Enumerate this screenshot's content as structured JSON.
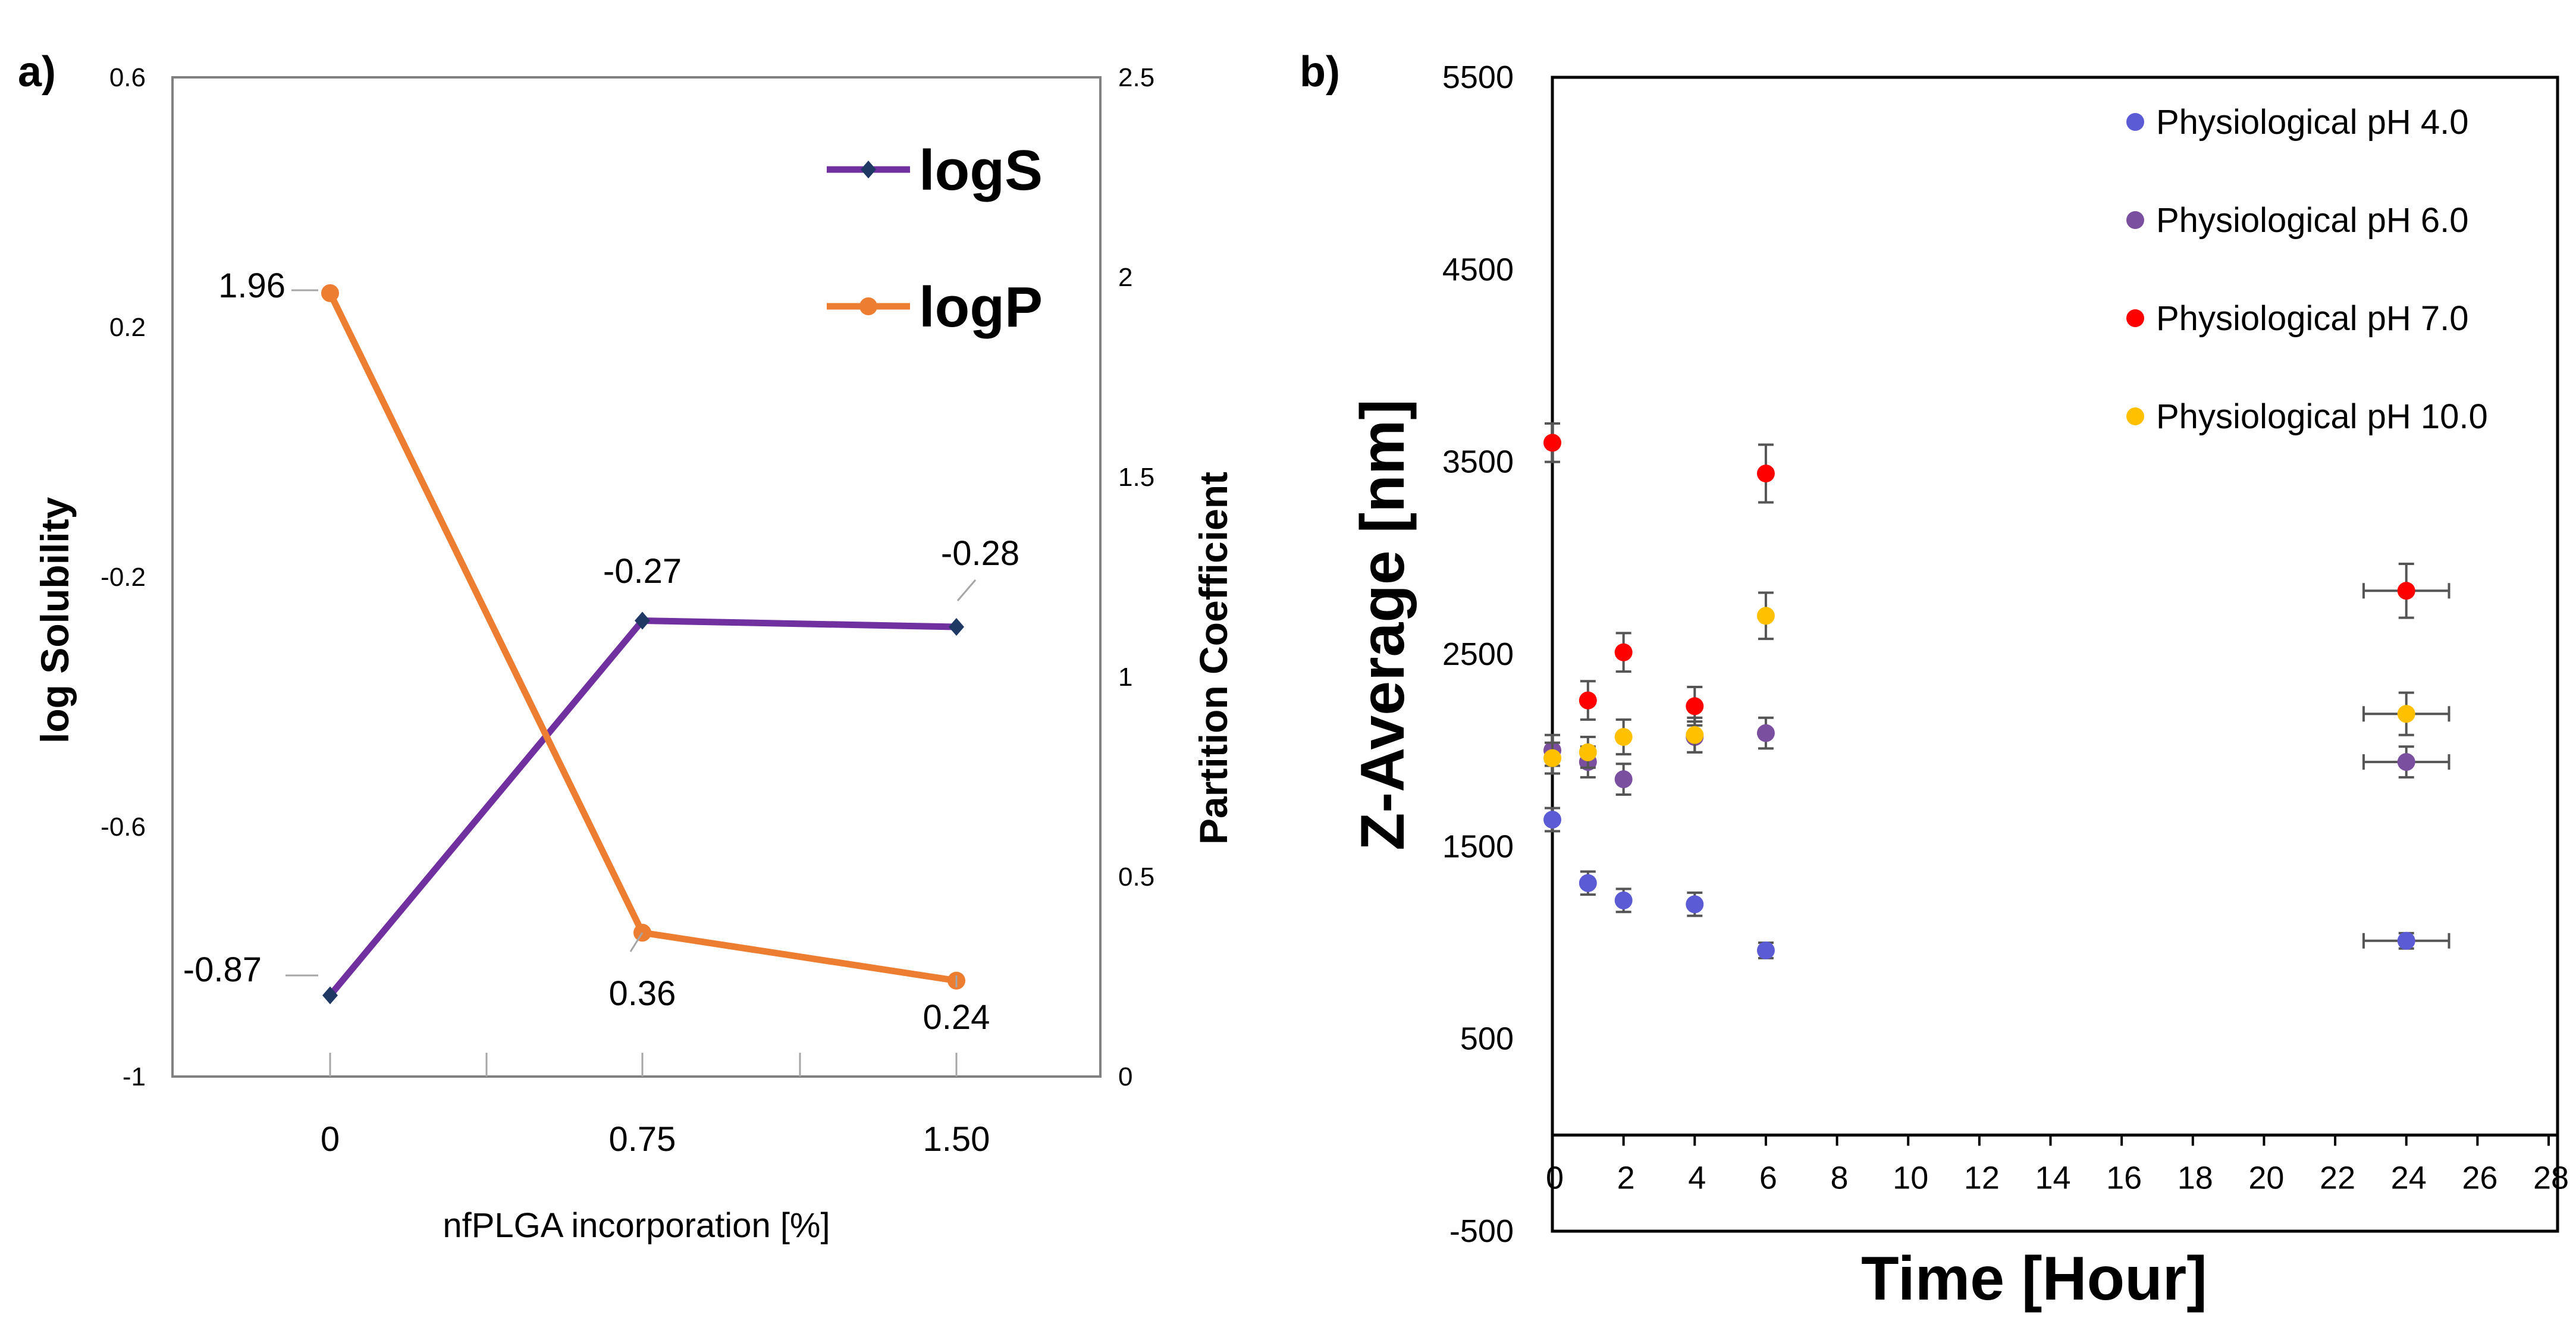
{
  "chart_data": [
    {
      "panel": "a)",
      "type": "line",
      "categories": [
        "0",
        "0.75",
        "1.50"
      ],
      "x": [
        0,
        0.75,
        1.5
      ],
      "xlabel": "nfPLGA incorporation [%]",
      "ylabel": "log Solubility",
      "y2label": "Partition Coefficient",
      "ylim": [
        -1,
        0.6
      ],
      "y2lim": [
        0,
        2.5
      ],
      "yticks": [
        "0.6",
        "0.2",
        "-0.2",
        "-0.6",
        "-1"
      ],
      "y2ticks": [
        "2.5",
        "2",
        "1.5",
        "1",
        "0.5",
        "0"
      ],
      "legend_position": "top-right",
      "series": [
        {
          "name": "logS",
          "axis": "left",
          "color": "#7030a0",
          "marker_color": "#1f3864",
          "values": [
            -0.87,
            -0.27,
            -0.28
          ],
          "labels": [
            "-0.87",
            "-0.27",
            "-0.28"
          ]
        },
        {
          "name": "logP",
          "axis": "right",
          "color": "#ed7d31",
          "marker_color": "#ed7d31",
          "values": [
            1.96,
            0.36,
            0.24
          ],
          "labels": [
            "1.96",
            "0.36",
            "0.24"
          ]
        }
      ]
    },
    {
      "panel": "b)",
      "type": "scatter",
      "xlabel": "Time [Hour]",
      "ylabel": "Z-Average [nm]",
      "xlim": [
        0,
        28
      ],
      "ylim": [
        -500,
        5500
      ],
      "xticks": [
        "0",
        "2",
        "4",
        "6",
        "8",
        "10",
        "12",
        "14",
        "16",
        "18",
        "20",
        "22",
        "24",
        "26",
        "28"
      ],
      "yticks": [
        "5500",
        "4500",
        "3500",
        "2500",
        "1500",
        "500",
        "-500"
      ],
      "legend_position": "top-right",
      "series": [
        {
          "name": "Physiological pH 4.0",
          "color": "#5b5bd6",
          "x": [
            0,
            1,
            2,
            4,
            6,
            24
          ],
          "y": [
            1640,
            1310,
            1220,
            1200,
            960,
            1010
          ],
          "yerr": [
            60,
            60,
            60,
            60,
            40,
            40
          ],
          "xerr": [
            0,
            0,
            0,
            0,
            0,
            1.2
          ]
        },
        {
          "name": "Physiological pH 6.0",
          "color": "#7b4fa0",
          "x": [
            0,
            1,
            2,
            4,
            6,
            24
          ],
          "y": [
            2000,
            1940,
            1850,
            2070,
            2090,
            1940
          ],
          "yerr": [
            80,
            80,
            80,
            80,
            80,
            80
          ],
          "xerr": [
            0,
            0,
            0,
            0,
            0,
            1.2
          ]
        },
        {
          "name": "Physiological pH 7.0",
          "color": "#ff0000",
          "x": [
            0,
            1,
            2,
            4,
            6,
            24
          ],
          "y": [
            3600,
            2260,
            2510,
            2230,
            3440,
            2830
          ],
          "yerr": [
            100,
            100,
            100,
            100,
            150,
            140
          ],
          "xerr": [
            0,
            0,
            0,
            0,
            0,
            1.2
          ]
        },
        {
          "name": "Physiological pH 10.0",
          "color": "#ffc000",
          "x": [
            0,
            1,
            2,
            4,
            6,
            24
          ],
          "y": [
            1960,
            1990,
            2070,
            2080,
            2700,
            2190
          ],
          "yerr": [
            80,
            80,
            90,
            90,
            120,
            110
          ],
          "xerr": [
            0,
            0,
            0,
            0,
            0,
            1.2
          ]
        }
      ]
    }
  ]
}
